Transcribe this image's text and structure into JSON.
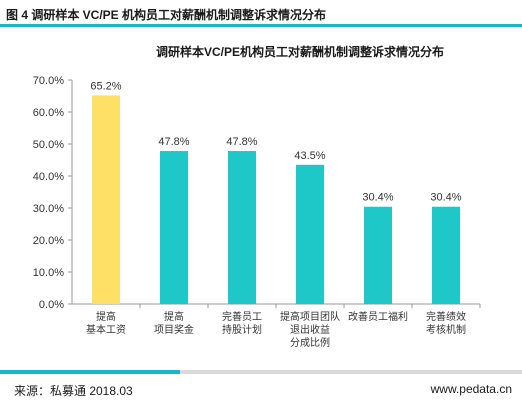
{
  "header": {
    "figure_label": "图 4 调研样本 VC/PE 机构员工对薪酬机制调整诉求情况分布"
  },
  "footer": {
    "source": "来源：私募通 2018.03",
    "website": "www.pedata.cn"
  },
  "colors": {
    "accent": "#1bb5c4",
    "highlight_bar": "#ffe066",
    "bar": "#1ec8c8"
  },
  "chart_data": {
    "type": "bar",
    "title": "调研样本VC/PE机构员工对薪酬机制调整诉求情况分布",
    "xlabel": "",
    "ylabel": "",
    "ylim": [
      0,
      70
    ],
    "yticks": [
      "0.0%",
      "10.0%",
      "20.0%",
      "30.0%",
      "40.0%",
      "50.0%",
      "60.0%",
      "70.0%"
    ],
    "categories": [
      [
        "提高",
        "基本工资"
      ],
      [
        "提高",
        "项目奖金"
      ],
      [
        "完善员工",
        "持股计划"
      ],
      [
        "提高项目团队",
        "退出收益",
        "分成比例"
      ],
      [
        "改善员工福利"
      ],
      [
        "完善绩效",
        "考核机制"
      ]
    ],
    "values": [
      65.2,
      47.8,
      47.8,
      43.5,
      30.4,
      30.4
    ],
    "data_labels": [
      "65.2%",
      "47.8%",
      "47.8%",
      "43.5%",
      "30.4%",
      "30.4%"
    ],
    "highlight_index": 0,
    "grid": false,
    "legend": "none"
  }
}
